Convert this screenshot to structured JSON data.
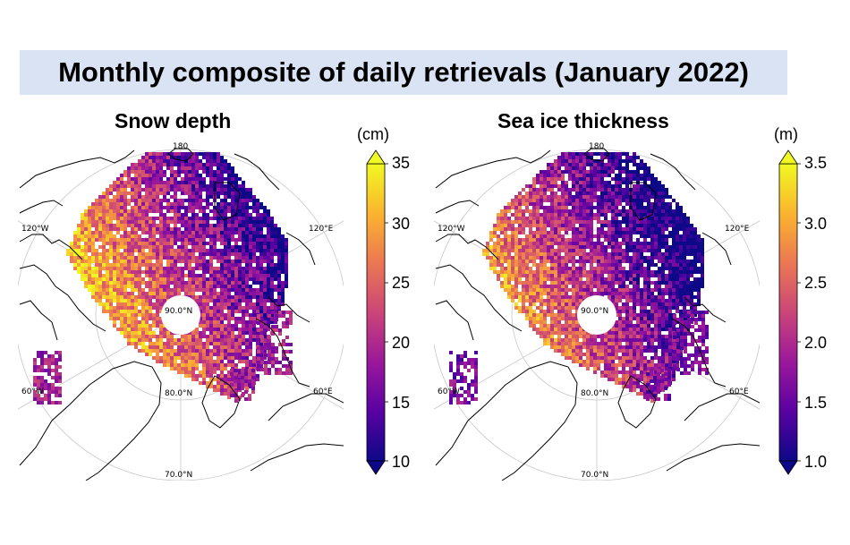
{
  "title": "Monthly composite of daily retrievals (January 2022)",
  "colormap": [
    "#0d0887",
    "#5b02a3",
    "#9a179b",
    "#cb4678",
    "#eb7852",
    "#fbb32f",
    "#f0f921"
  ],
  "chart_data": [
    {
      "type": "heatmap",
      "title": "Snow depth",
      "unit": "(cm)",
      "projection": "north polar stereographic",
      "colorbar": {
        "min": 10,
        "max": 35,
        "ticks": [
          "35",
          "30",
          "25",
          "20",
          "15",
          "10"
        ],
        "extend": "both"
      },
      "map_labels": {
        "lon_top": "180",
        "lon_left": "120°W",
        "lon_right": "120°E",
        "lat_center": "90.0°N",
        "lat_80": "80.0°N",
        "lat_70": "70.0°N",
        "lon_bottom_left": "60°W",
        "lon_bottom_right": "60°E"
      }
    },
    {
      "type": "heatmap",
      "title": "Sea ice thickness",
      "unit": "(m)",
      "projection": "north polar stereographic",
      "colorbar": {
        "min": 1.0,
        "max": 3.5,
        "ticks": [
          "3.5",
          "3.0",
          "2.5",
          "2.0",
          "1.5",
          "1.0"
        ],
        "extend": "both"
      },
      "map_labels": {
        "lon_top": "180",
        "lon_left": "120°W",
        "lon_right": "120°E",
        "lat_center": "90.0°N",
        "lat_80": "80.0°N",
        "lat_70": "70.0°N",
        "lon_bottom_left": "60°W",
        "lon_bottom_right": "60°E"
      }
    }
  ]
}
